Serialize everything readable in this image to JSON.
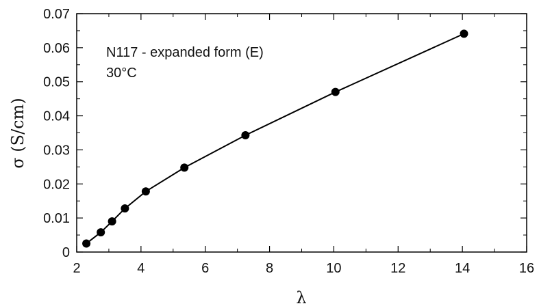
{
  "chart_data": {
    "type": "line",
    "title": "",
    "xlabel": "λ",
    "ylabel": "σ (S/cm)",
    "xlim": [
      2,
      16
    ],
    "ylim": [
      0,
      0.07
    ],
    "xticks": [
      2,
      4,
      6,
      8,
      10,
      12,
      14,
      16
    ],
    "yticks": [
      0,
      0.01,
      0.02,
      0.03,
      0.04,
      0.05,
      0.06,
      0.07
    ],
    "xtick_labels": [
      "2",
      "4",
      "6",
      "8",
      "10",
      "12",
      "14",
      "16"
    ],
    "ytick_labels": [
      "0",
      "0.01",
      "0.02",
      "0.03",
      "0.04",
      "0.05",
      "0.06",
      "0.07"
    ],
    "grid": false,
    "legend": "none",
    "annotations": [
      "N117 - expanded form (E)",
      "30°C"
    ],
    "series": [
      {
        "marker": "filled-circle",
        "line": "solid",
        "color": "#000000",
        "x": [
          2.3,
          2.75,
          3.1,
          3.5,
          4.15,
          5.35,
          7.25,
          10.05,
          14.05
        ],
        "y": [
          0.0025,
          0.0058,
          0.009,
          0.0128,
          0.0178,
          0.0248,
          0.0343,
          0.047,
          0.0641
        ]
      }
    ]
  }
}
